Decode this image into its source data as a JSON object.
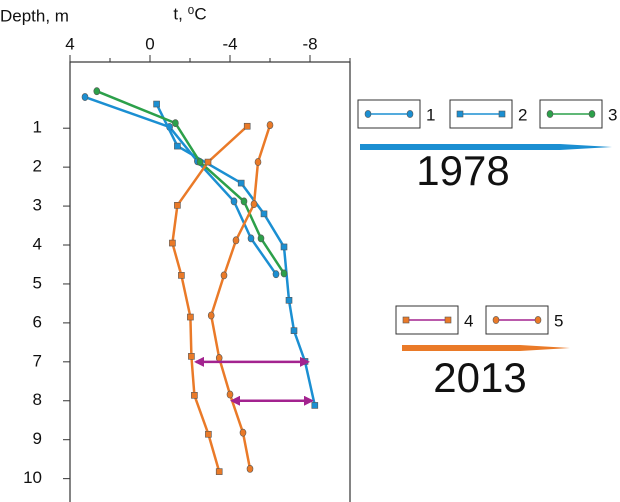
{
  "chart_data": {
    "type": "line",
    "xlabel": "t, ⁰C",
    "ylabel": "Depth, m",
    "xlim": [
      4,
      -10
    ],
    "xticks": [
      4,
      0,
      -4,
      -8
    ],
    "xminor_ticks": [
      2,
      -2,
      -6,
      -10
    ],
    "ylim": [
      -0.7,
      10.6
    ],
    "yticks": [
      1,
      2,
      3,
      4,
      5,
      6,
      7,
      8,
      9,
      10
    ],
    "series": [
      {
        "name": "1",
        "color": "#1b8fd2",
        "marker": "circle",
        "group": 0,
        "x": [
          3.25,
          -0.98,
          -2.37,
          -4.2,
          -5.05,
          -6.3
        ],
        "values": [
          0.2,
          0.97,
          1.85,
          2.88,
          3.83,
          4.75
        ]
      },
      {
        "name": "2",
        "color": "#1b8fd2",
        "marker": "square",
        "group": 0,
        "x": [
          -0.33,
          -1.37,
          -4.56,
          -5.7,
          -6.7,
          -6.95,
          -7.2,
          -7.75,
          -8.24
        ],
        "values": [
          0.38,
          1.46,
          2.41,
          3.2,
          4.05,
          5.42,
          6.2,
          6.99,
          8.12
        ]
      },
      {
        "name": "3",
        "color": "#2ca04a",
        "marker": "circle",
        "group": 0,
        "x": [
          2.66,
          -1.27,
          -2.5,
          -4.7,
          -5.55,
          -6.7
        ],
        "values": [
          0.05,
          0.87,
          1.87,
          2.88,
          3.83,
          4.73
        ]
      },
      {
        "name": "4",
        "color": "#ea7a28",
        "marker": "square",
        "group": 1,
        "x": [
          -4.86,
          -2.9,
          -1.37,
          -1.12,
          -1.57,
          -2.02,
          -2.07,
          -2.22,
          -2.92,
          -3.46
        ],
        "values": [
          0.95,
          1.87,
          2.98,
          3.95,
          4.78,
          5.85,
          6.86,
          7.86,
          8.86,
          9.82
        ]
      },
      {
        "name": "5",
        "color": "#ea7a28",
        "marker": "circle",
        "group": 1,
        "x": [
          -6.0,
          -5.4,
          -5.2,
          -4.3,
          -3.7,
          -3.06,
          -3.46,
          -4.0,
          -4.65,
          -5.0
        ],
        "values": [
          0.92,
          1.87,
          2.95,
          3.88,
          4.78,
          5.81,
          6.9,
          7.84,
          8.82,
          9.75
        ]
      }
    ],
    "arrows": [
      {
        "from": -2.3,
        "to": -7.9,
        "depth": 7.0
      },
      {
        "from": -4.1,
        "to": -8.1,
        "depth": 8.0
      }
    ],
    "arrow_color": "#a3238f",
    "annotations": [
      "1978",
      "2013"
    ]
  }
}
